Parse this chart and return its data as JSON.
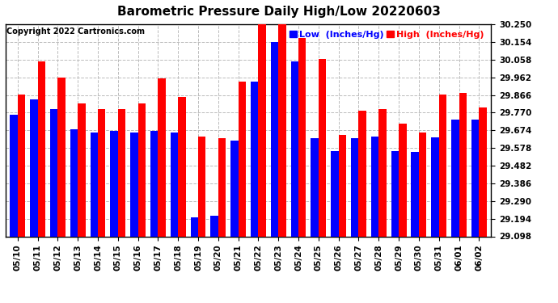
{
  "title": "Barometric Pressure Daily High/Low 20220603",
  "copyright": "Copyright 2022 Cartronics.com",
  "legend_low_label": "Low  (Inches/Hg)",
  "legend_high_label": "High  (Inches/Hg)",
  "dates": [
    "05/10",
    "05/11",
    "05/12",
    "05/13",
    "05/14",
    "05/15",
    "05/16",
    "05/17",
    "05/18",
    "05/19",
    "05/20",
    "05/21",
    "05/22",
    "05/23",
    "05/24",
    "05/25",
    "05/26",
    "05/27",
    "05/28",
    "05/29",
    "05/30",
    "05/31",
    "06/01",
    "06/02"
  ],
  "low_values": [
    29.76,
    29.84,
    29.79,
    29.68,
    29.66,
    29.67,
    29.66,
    29.67,
    29.66,
    29.2,
    29.21,
    29.62,
    29.94,
    30.155,
    30.05,
    29.63,
    29.56,
    29.63,
    29.64,
    29.56,
    29.555,
    29.635,
    29.73,
    29.73
  ],
  "high_values": [
    29.87,
    30.05,
    29.96,
    29.82,
    29.79,
    29.79,
    29.82,
    29.955,
    29.855,
    29.64,
    29.63,
    29.94,
    30.26,
    30.27,
    30.175,
    30.06,
    29.65,
    29.78,
    29.79,
    29.71,
    29.66,
    29.87,
    29.875,
    29.8
  ],
  "ymin": 29.098,
  "ymax": 30.25,
  "yticks": [
    29.098,
    29.194,
    29.29,
    29.386,
    29.482,
    29.578,
    29.674,
    29.77,
    29.866,
    29.962,
    30.058,
    30.154,
    30.25
  ],
  "ytick_labels": [
    "29.098",
    "29.194",
    "29.290",
    "29.386",
    "29.482",
    "29.578",
    "29.674",
    "29.770",
    "29.866",
    "29.962",
    "30.058",
    "30.154",
    "30.250"
  ],
  "bar_width": 0.38,
  "low_color": "#0000ff",
  "high_color": "#ff0000",
  "bg_color": "#ffffff",
  "title_fontsize": 11,
  "tick_fontsize": 7.5,
  "copyright_fontsize": 7,
  "legend_fontsize": 8
}
